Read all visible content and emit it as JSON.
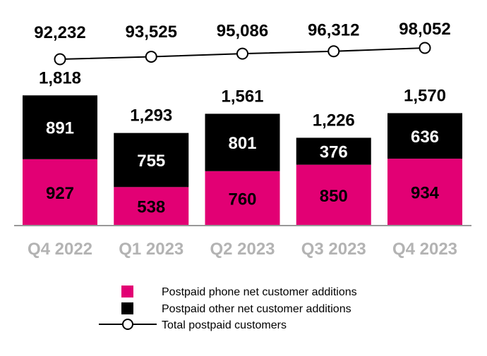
{
  "chart_data": {
    "type": "bar",
    "stacked": true,
    "categories": [
      "Q4 2022",
      "Q1 2023",
      "Q2 2023",
      "Q3 2023",
      "Q4 2023"
    ],
    "series": [
      {
        "name": "Postpaid phone net customer additions",
        "type": "bar",
        "color": "#e20074",
        "values": [
          927,
          538,
          760,
          850,
          934
        ]
      },
      {
        "name": "Postpaid other net customer additions",
        "type": "bar",
        "color": "#000000",
        "values": [
          891,
          755,
          801,
          376,
          636
        ]
      },
      {
        "name": "Total postpaid customers",
        "type": "line",
        "color": "#000000",
        "values": [
          92232,
          93525,
          95086,
          96312,
          98052
        ]
      }
    ],
    "stack_totals": [
      1818,
      1293,
      1561,
      1226,
      1570
    ],
    "total_labels": [
      "1,818",
      "1,293",
      "1,561",
      "1,226",
      "1,570"
    ],
    "line_labels": [
      "92,232",
      "93,525",
      "95,086",
      "96,312",
      "98,052"
    ],
    "grid": false,
    "legend_placement": "bottom",
    "category_label_color": "#b3b3b3"
  }
}
